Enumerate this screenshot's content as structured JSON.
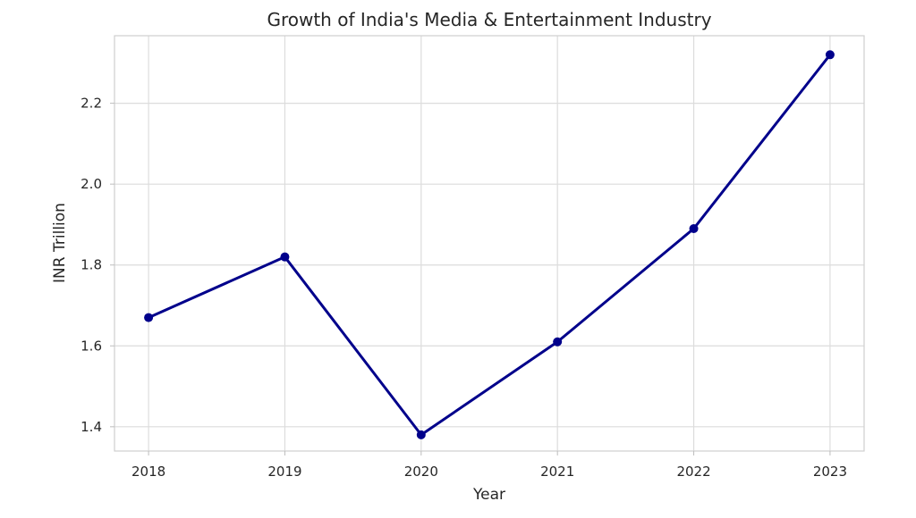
{
  "chart_data": {
    "type": "line",
    "title": "Growth of India's Media & Entertainment Industry",
    "xlabel": "Year",
    "ylabel": "INR Trillion",
    "x": [
      2018,
      2019,
      2020,
      2021,
      2022,
      2023
    ],
    "x_tick_labels": [
      "2018",
      "2019",
      "2020",
      "2021",
      "2022",
      "2023"
    ],
    "series": [
      {
        "values": [
          1.67,
          1.82,
          1.38,
          1.61,
          1.89,
          2.32
        ],
        "color": "#00008b",
        "marker": "circle"
      }
    ],
    "y_ticks": [
      1.4,
      1.6,
      1.8,
      2.0,
      2.2
    ],
    "y_tick_labels": [
      "1.4",
      "1.6",
      "1.8",
      "2.0",
      "2.2"
    ],
    "xlim": [
      2017.75,
      2023.25
    ],
    "ylim": [
      1.34,
      2.367
    ],
    "grid": true,
    "legend": "none",
    "colors": {
      "line": "#00008b",
      "grid": "#dcdcdc",
      "frame": "#cfcfcf",
      "text": "#262626"
    }
  }
}
